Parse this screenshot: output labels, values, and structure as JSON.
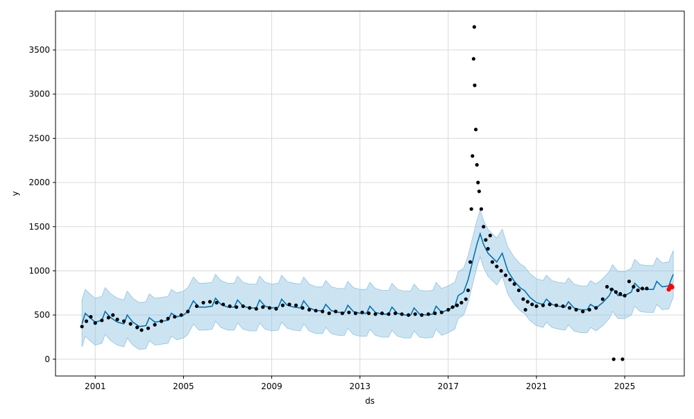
{
  "chart_data": {
    "type": "line",
    "title": "",
    "xlabel": "ds",
    "ylabel": "y",
    "x_ticks": [
      "2001",
      "2005",
      "2009",
      "2013",
      "2017",
      "2021",
      "2025"
    ],
    "y_ticks": [
      "0",
      "500",
      "1000",
      "1500",
      "2000",
      "2500",
      "3000",
      "3500"
    ],
    "xlim": [
      1999.2,
      2027.7
    ],
    "ylim": [
      -190,
      3940
    ],
    "grid": true,
    "legend": "none",
    "colors": {
      "observed": "#000000",
      "forecast_line": "#0072B2",
      "uncertainty_band": "#8ec3e3",
      "recent_observed": "#ff0000",
      "grid": "#d9d9d9"
    },
    "series": [
      {
        "role": "observed",
        "points": [
          [
            2000.4,
            370
          ],
          [
            2000.6,
            430
          ],
          [
            2000.8,
            480
          ],
          [
            2001.0,
            410
          ],
          [
            2001.3,
            440
          ],
          [
            2001.6,
            470
          ],
          [
            2001.8,
            500
          ],
          [
            2002.0,
            450
          ],
          [
            2002.3,
            430
          ],
          [
            2002.6,
            400
          ],
          [
            2002.9,
            360
          ],
          [
            2003.1,
            330
          ],
          [
            2003.4,
            350
          ],
          [
            2003.7,
            390
          ],
          [
            2004.0,
            430
          ],
          [
            2004.3,
            460
          ],
          [
            2004.6,
            480
          ],
          [
            2004.9,
            500
          ],
          [
            2005.2,
            540
          ],
          [
            2005.6,
            600
          ],
          [
            2005.9,
            640
          ],
          [
            2006.2,
            650
          ],
          [
            2006.5,
            640
          ],
          [
            2006.8,
            620
          ],
          [
            2007.1,
            600
          ],
          [
            2007.4,
            590
          ],
          [
            2007.7,
            600
          ],
          [
            2008.0,
            580
          ],
          [
            2008.3,
            570
          ],
          [
            2008.6,
            590
          ],
          [
            2008.9,
            580
          ],
          [
            2009.2,
            570
          ],
          [
            2009.5,
            610
          ],
          [
            2009.8,
            620
          ],
          [
            2010.1,
            610
          ],
          [
            2010.4,
            580
          ],
          [
            2010.7,
            560
          ],
          [
            2011.0,
            550
          ],
          [
            2011.3,
            540
          ],
          [
            2011.6,
            520
          ],
          [
            2011.9,
            540
          ],
          [
            2012.2,
            520
          ],
          [
            2012.5,
            530
          ],
          [
            2012.8,
            520
          ],
          [
            2013.1,
            530
          ],
          [
            2013.4,
            520
          ],
          [
            2013.7,
            510
          ],
          [
            2014.0,
            520
          ],
          [
            2014.3,
            510
          ],
          [
            2014.6,
            520
          ],
          [
            2014.9,
            510
          ],
          [
            2015.2,
            500
          ],
          [
            2015.5,
            510
          ],
          [
            2015.8,
            500
          ],
          [
            2016.1,
            510
          ],
          [
            2016.4,
            520
          ],
          [
            2016.7,
            530
          ],
          [
            2017.0,
            560
          ],
          [
            2017.2,
            590
          ],
          [
            2017.4,
            610
          ],
          [
            2017.6,
            640
          ],
          [
            2017.8,
            680
          ],
          [
            2017.9,
            780
          ],
          [
            2018.0,
            1100
          ],
          [
            2018.05,
            1700
          ],
          [
            2018.1,
            2300
          ],
          [
            2018.15,
            3400
          ],
          [
            2018.18,
            3760
          ],
          [
            2018.2,
            3100
          ],
          [
            2018.25,
            2600
          ],
          [
            2018.3,
            2200
          ],
          [
            2018.35,
            2000
          ],
          [
            2018.4,
            1900
          ],
          [
            2018.5,
            1700
          ],
          [
            2018.6,
            1500
          ],
          [
            2018.7,
            1350
          ],
          [
            2018.8,
            1250
          ],
          [
            2018.9,
            1400
          ],
          [
            2019.0,
            1100
          ],
          [
            2019.2,
            1050
          ],
          [
            2019.4,
            1000
          ],
          [
            2019.6,
            950
          ],
          [
            2019.8,
            900
          ],
          [
            2020.0,
            850
          ],
          [
            2020.2,
            780
          ],
          [
            2020.4,
            680
          ],
          [
            2020.5,
            560
          ],
          [
            2020.6,
            650
          ],
          [
            2020.8,
            620
          ],
          [
            2021.0,
            600
          ],
          [
            2021.3,
            610
          ],
          [
            2021.6,
            620
          ],
          [
            2021.9,
            610
          ],
          [
            2022.2,
            600
          ],
          [
            2022.5,
            580
          ],
          [
            2022.8,
            560
          ],
          [
            2023.1,
            540
          ],
          [
            2023.4,
            560
          ],
          [
            2023.7,
            580
          ],
          [
            2024.0,
            680
          ],
          [
            2024.2,
            820
          ],
          [
            2024.4,
            790
          ],
          [
            2024.6,
            760
          ],
          [
            2024.8,
            740
          ],
          [
            2025.0,
            720
          ],
          [
            2025.2,
            880
          ],
          [
            2025.4,
            820
          ],
          [
            2025.6,
            780
          ],
          [
            2025.8,
            800
          ],
          [
            2026.0,
            800
          ],
          [
            2024.5,
            0
          ],
          [
            2024.9,
            0
          ]
        ]
      },
      {
        "role": "recent_observed",
        "points": [
          [
            2027.0,
            790
          ],
          [
            2027.05,
            810
          ],
          [
            2027.1,
            830
          ],
          [
            2027.15,
            815
          ]
        ]
      },
      {
        "role": "forecast",
        "points": [
          [
            2000.4,
            400
          ],
          [
            2000.55,
            520
          ],
          [
            2000.8,
            460
          ],
          [
            2001.0,
            420
          ],
          [
            2001.3,
            440
          ],
          [
            2001.45,
            540
          ],
          [
            2001.7,
            470
          ],
          [
            2002.0,
            420
          ],
          [
            2002.3,
            400
          ],
          [
            2002.45,
            500
          ],
          [
            2002.7,
            420
          ],
          [
            2003.0,
            370
          ],
          [
            2003.3,
            380
          ],
          [
            2003.45,
            470
          ],
          [
            2003.7,
            420
          ],
          [
            2004.0,
            430
          ],
          [
            2004.3,
            440
          ],
          [
            2004.45,
            520
          ],
          [
            2004.7,
            480
          ],
          [
            2005.0,
            500
          ],
          [
            2005.2,
            540
          ],
          [
            2005.45,
            660
          ],
          [
            2005.7,
            590
          ],
          [
            2006.0,
            590
          ],
          [
            2006.3,
            600
          ],
          [
            2006.45,
            690
          ],
          [
            2006.7,
            620
          ],
          [
            2007.0,
            590
          ],
          [
            2007.3,
            590
          ],
          [
            2007.45,
            670
          ],
          [
            2007.7,
            600
          ],
          [
            2008.0,
            580
          ],
          [
            2008.3,
            580
          ],
          [
            2008.45,
            670
          ],
          [
            2008.7,
            600
          ],
          [
            2009.0,
            580
          ],
          [
            2009.3,
            590
          ],
          [
            2009.45,
            680
          ],
          [
            2009.7,
            610
          ],
          [
            2010.0,
            590
          ],
          [
            2010.3,
            580
          ],
          [
            2010.45,
            660
          ],
          [
            2010.7,
            580
          ],
          [
            2011.0,
            550
          ],
          [
            2011.3,
            550
          ],
          [
            2011.45,
            620
          ],
          [
            2011.7,
            550
          ],
          [
            2012.0,
            530
          ],
          [
            2012.3,
            530
          ],
          [
            2012.45,
            610
          ],
          [
            2012.7,
            540
          ],
          [
            2013.0,
            520
          ],
          [
            2013.3,
            520
          ],
          [
            2013.45,
            600
          ],
          [
            2013.7,
            530
          ],
          [
            2014.0,
            510
          ],
          [
            2014.3,
            510
          ],
          [
            2014.45,
            590
          ],
          [
            2014.7,
            520
          ],
          [
            2015.0,
            500
          ],
          [
            2015.3,
            500
          ],
          [
            2015.45,
            580
          ],
          [
            2015.7,
            510
          ],
          [
            2016.0,
            500
          ],
          [
            2016.3,
            510
          ],
          [
            2016.45,
            600
          ],
          [
            2016.7,
            530
          ],
          [
            2017.0,
            560
          ],
          [
            2017.3,
            600
          ],
          [
            2017.45,
            720
          ],
          [
            2017.7,
            760
          ],
          [
            2017.9,
            900
          ],
          [
            2018.1,
            1100
          ],
          [
            2018.3,
            1300
          ],
          [
            2018.45,
            1420
          ],
          [
            2018.6,
            1300
          ],
          [
            2018.8,
            1200
          ],
          [
            2019.0,
            1150
          ],
          [
            2019.2,
            1100
          ],
          [
            2019.45,
            1200
          ],
          [
            2019.7,
            1000
          ],
          [
            2020.0,
            880
          ],
          [
            2020.3,
            800
          ],
          [
            2020.45,
            780
          ],
          [
            2020.7,
            700
          ],
          [
            2021.0,
            640
          ],
          [
            2021.3,
            620
          ],
          [
            2021.45,
            680
          ],
          [
            2021.7,
            620
          ],
          [
            2022.0,
            600
          ],
          [
            2022.3,
            590
          ],
          [
            2022.45,
            650
          ],
          [
            2022.7,
            580
          ],
          [
            2023.0,
            560
          ],
          [
            2023.3,
            560
          ],
          [
            2023.45,
            620
          ],
          [
            2023.7,
            580
          ],
          [
            2024.0,
            640
          ],
          [
            2024.3,
            720
          ],
          [
            2024.45,
            800
          ],
          [
            2024.7,
            720
          ],
          [
            2025.0,
            720
          ],
          [
            2025.3,
            760
          ],
          [
            2025.45,
            860
          ],
          [
            2025.7,
            800
          ],
          [
            2026.0,
            790
          ],
          [
            2026.3,
            790
          ],
          [
            2026.45,
            880
          ],
          [
            2026.7,
            820
          ],
          [
            2027.0,
            830
          ],
          [
            2027.1,
            900
          ],
          [
            2027.2,
            960
          ]
        ]
      },
      {
        "role": "uncertainty_band",
        "upper_offset": 270,
        "lower_offset": 260
      }
    ]
  }
}
